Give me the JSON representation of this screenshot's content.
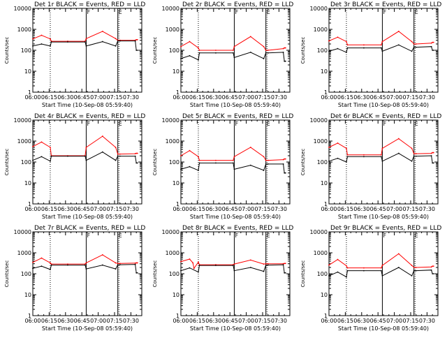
{
  "figure": {
    "ylabel": "Counts/sec",
    "xlabel": "Start Time (10-Sep-08 05:59:40)",
    "x_tick_labels": [
      "06:00",
      "06:15",
      "06:30",
      "06:45",
      "07:00",
      "07:15",
      "07:30"
    ],
    "y_tick_labels": [
      "1",
      "10",
      "100",
      "1000",
      "10000"
    ],
    "colors": {
      "events": "#000000",
      "lld": "#ff0000"
    },
    "marker_labels": [
      "F",
      "E"
    ]
  },
  "chart_data": [
    {
      "type": "line",
      "title": "Det 1r BLACK = Events, RED = LLD",
      "xlabel": "Start Time (10-Sep-08 05:59:40)",
      "ylabel": "Counts/sec",
      "x_unit": "minutes after 06:00",
      "ylim": [
        1,
        10000
      ],
      "y_scale": "log",
      "x_range": [
        "06:00",
        "07:40"
      ],
      "dotted_lines_at": [
        "06:16",
        "07:19"
      ],
      "solid_lines_at": [
        "06:49",
        "07:18"
      ],
      "series": [
        {
          "name": "Events",
          "color": "#000000",
          "x": [
            0,
            8,
            16,
            17,
            32,
            48,
            49,
            64,
            76,
            78,
            80,
            94,
            95,
            96
          ],
          "values": [
            160,
            200,
            160,
            250,
            250,
            250,
            160,
            260,
            160,
            280,
            280,
            280,
            100,
            100
          ]
        },
        {
          "name": "LLD",
          "color": "#ff0000",
          "x": [
            0,
            8,
            16,
            17,
            32,
            48,
            49,
            64,
            76,
            78,
            80,
            94,
            95,
            96
          ],
          "values": [
            350,
            520,
            350,
            270,
            270,
            270,
            360,
            800,
            360,
            300,
            300,
            300,
            320,
            320
          ]
        }
      ]
    },
    {
      "type": "line",
      "title": "Det 2r BLACK = Events, RED = LLD",
      "xlabel": "Start Time (10-Sep-08 05:59:40)",
      "ylabel": "Counts/sec",
      "x_unit": "minutes after 06:00",
      "ylim": [
        1,
        10000
      ],
      "y_scale": "log",
      "x_range": [
        "06:00",
        "07:40"
      ],
      "dotted_lines_at": [
        "06:16",
        "07:19"
      ],
      "solid_lines_at": [
        "06:49",
        "07:18"
      ],
      "series": [
        {
          "name": "Events",
          "color": "#000000",
          "x": [
            0,
            8,
            16,
            17,
            32,
            48,
            49,
            64,
            76,
            78,
            80,
            94,
            95,
            96
          ],
          "values": [
            40,
            55,
            35,
            75,
            75,
            75,
            45,
            80,
            40,
            75,
            75,
            80,
            30,
            30
          ]
        },
        {
          "name": "LLD",
          "color": "#ff0000",
          "x": [
            0,
            8,
            16,
            17,
            32,
            48,
            49,
            64,
            76,
            78,
            80,
            94,
            95,
            96
          ],
          "values": [
            150,
            260,
            130,
            100,
            100,
            100,
            150,
            450,
            150,
            100,
            100,
            120,
            130,
            130
          ]
        }
      ]
    },
    {
      "type": "line",
      "title": "Det 3r BLACK = Events, RED = LLD",
      "xlabel": "Start Time (10-Sep-08 05:59:40)",
      "ylabel": "Counts/sec",
      "x_unit": "minutes after 06:00",
      "ylim": [
        1,
        10000
      ],
      "y_scale": "log",
      "x_range": [
        "06:00",
        "07:40"
      ],
      "dotted_lines_at": [
        "06:16",
        "07:19"
      ],
      "solid_lines_at": [
        "06:49",
        "07:18"
      ],
      "series": [
        {
          "name": "Events",
          "color": "#000000",
          "x": [
            0,
            8,
            16,
            17,
            32,
            48,
            49,
            64,
            76,
            78,
            80,
            94,
            95,
            96
          ],
          "values": [
            90,
            120,
            80,
            130,
            130,
            130,
            90,
            180,
            90,
            140,
            140,
            150,
            100,
            100
          ]
        },
        {
          "name": "LLD",
          "color": "#ff0000",
          "x": [
            0,
            8,
            16,
            17,
            32,
            48,
            49,
            64,
            76,
            78,
            80,
            94,
            95,
            96
          ],
          "values": [
            280,
            420,
            260,
            180,
            180,
            180,
            260,
            800,
            260,
            200,
            200,
            220,
            240,
            240
          ]
        }
      ]
    },
    {
      "type": "line",
      "title": "Det 4r BLACK = Events, RED = LLD",
      "xlabel": "Start Time (10-Sep-08 05:59:40)",
      "ylabel": "Counts/sec",
      "x_unit": "minutes after 06:00",
      "ylim": [
        1,
        10000
      ],
      "y_scale": "log",
      "x_range": [
        "06:00",
        "07:40"
      ],
      "dotted_lines_at": [
        "06:16",
        "07:19"
      ],
      "solid_lines_at": [
        "06:49",
        "07:18"
      ],
      "series": [
        {
          "name": "Events",
          "color": "#000000",
          "x": [
            0,
            8,
            16,
            17,
            32,
            48,
            49,
            64,
            76,
            78,
            80,
            94,
            95,
            96
          ],
          "values": [
            120,
            180,
            110,
            190,
            190,
            190,
            120,
            300,
            120,
            190,
            190,
            190,
            90,
            90
          ]
        },
        {
          "name": "LLD",
          "color": "#ff0000",
          "x": [
            0,
            8,
            16,
            17,
            32,
            48,
            49,
            64,
            76,
            78,
            80,
            94,
            95,
            96
          ],
          "values": [
            550,
            900,
            500,
            200,
            200,
            200,
            500,
            1700,
            500,
            240,
            240,
            250,
            260,
            260
          ]
        }
      ]
    },
    {
      "type": "line",
      "title": "Det 5r BLACK = Events, RED = LLD",
      "xlabel": "Start Time (10-Sep-08 05:59:40)",
      "ylabel": "Counts/sec",
      "x_unit": "minutes after 06:00",
      "ylim": [
        1,
        10000
      ],
      "y_scale": "log",
      "x_range": [
        "06:00",
        "07:40"
      ],
      "dotted_lines_at": [
        "06:16",
        "07:19"
      ],
      "solid_lines_at": [
        "06:49",
        "07:18"
      ],
      "series": [
        {
          "name": "Events",
          "color": "#000000",
          "x": [
            0,
            8,
            16,
            17,
            32,
            48,
            49,
            64,
            76,
            78,
            80,
            94,
            95,
            96
          ],
          "values": [
            45,
            60,
            40,
            90,
            90,
            90,
            45,
            70,
            40,
            80,
            80,
            80,
            30,
            30
          ]
        },
        {
          "name": "LLD",
          "color": "#ff0000",
          "x": [
            0,
            8,
            16,
            17,
            32,
            48,
            49,
            64,
            76,
            78,
            80,
            94,
            95,
            96
          ],
          "values": [
            200,
            350,
            180,
            120,
            120,
            120,
            180,
            500,
            180,
            120,
            120,
            130,
            140,
            140
          ]
        }
      ]
    },
    {
      "type": "line",
      "title": "Det 6r BLACK = Events, RED = LLD",
      "xlabel": "Start Time (10-Sep-08 05:59:40)",
      "ylabel": "Counts/sec",
      "x_unit": "minutes after 06:00",
      "ylim": [
        1,
        10000
      ],
      "y_scale": "log",
      "x_range": [
        "06:00",
        "07:40"
      ],
      "dotted_lines_at": [
        "06:16",
        "07:19"
      ],
      "solid_lines_at": [
        "06:49",
        "07:18"
      ],
      "series": [
        {
          "name": "Events",
          "color": "#000000",
          "x": [
            0,
            8,
            16,
            17,
            32,
            48,
            49,
            64,
            76,
            78,
            80,
            94,
            95,
            96
          ],
          "values": [
            110,
            150,
            100,
            180,
            180,
            180,
            110,
            260,
            110,
            190,
            190,
            200,
            90,
            90
          ]
        },
        {
          "name": "LLD",
          "color": "#ff0000",
          "x": [
            0,
            8,
            16,
            17,
            32,
            48,
            49,
            64,
            76,
            78,
            80,
            94,
            95,
            96
          ],
          "values": [
            500,
            800,
            450,
            220,
            220,
            220,
            450,
            1300,
            450,
            250,
            250,
            260,
            280,
            280
          ]
        }
      ]
    },
    {
      "type": "line",
      "title": "Det 7r BLACK = Events, RED = LLD",
      "xlabel": "Start Time (10-Sep-08 05:59:40)",
      "ylabel": "Counts/sec",
      "x_unit": "minutes after 06:00",
      "ylim": [
        1,
        10000
      ],
      "y_scale": "log",
      "x_range": [
        "06:00",
        "07:40"
      ],
      "dotted_lines_at": [
        "06:16",
        "07:19"
      ],
      "solid_lines_at": [
        "06:49",
        "07:18"
      ],
      "series": [
        {
          "name": "Events",
          "color": "#000000",
          "x": [
            0,
            8,
            16,
            17,
            32,
            48,
            49,
            64,
            76,
            78,
            80,
            94,
            95,
            96
          ],
          "values": [
            180,
            230,
            160,
            260,
            260,
            260,
            170,
            260,
            170,
            270,
            270,
            280,
            110,
            110
          ]
        },
        {
          "name": "LLD",
          "color": "#ff0000",
          "x": [
            0,
            8,
            16,
            17,
            32,
            48,
            49,
            64,
            76,
            78,
            80,
            94,
            95,
            96
          ],
          "values": [
            350,
            560,
            330,
            290,
            290,
            290,
            330,
            800,
            330,
            310,
            310,
            320,
            330,
            330
          ]
        }
      ]
    },
    {
      "type": "line",
      "title": "Det 8r BLACK = Events, RED = LLD",
      "xlabel": "Start Time (10-Sep-08 05:59:40)",
      "ylabel": "Counts/sec",
      "x_unit": "minutes after 06:00",
      "ylim": [
        1,
        10000
      ],
      "y_scale": "log",
      "x_range": [
        "06:00",
        "07:40"
      ],
      "dotted_lines_at": [
        "06:16",
        "07:19"
      ],
      "solid_lines_at": [
        "06:49",
        "07:18"
      ],
      "series": [
        {
          "name": "Events",
          "color": "#000000",
          "x": [
            0,
            8,
            16,
            17,
            32,
            48,
            49,
            64,
            76,
            78,
            80,
            94,
            95,
            96
          ],
          "values": [
            140,
            190,
            120,
            250,
            250,
            250,
            140,
            200,
            130,
            260,
            260,
            270,
            110,
            110
          ]
        },
        {
          "name": "LLD",
          "color": "#ff0000",
          "x": [
            0,
            8,
            11,
            12,
            16,
            17,
            32,
            48,
            49,
            64,
            76,
            78,
            80,
            94,
            95,
            96
          ],
          "values": [
            380,
            500,
            330,
            180,
            360,
            270,
            270,
            270,
            290,
            450,
            290,
            300,
            300,
            300,
            310,
            310
          ]
        }
      ]
    },
    {
      "type": "line",
      "title": "Det 9r BLACK = Events, RED = LLD",
      "xlabel": "Start Time (10-Sep-08 05:59:40)",
      "ylabel": "Counts/sec",
      "x_unit": "minutes after 06:00",
      "ylim": [
        1,
        10000
      ],
      "y_scale": "log",
      "x_range": [
        "06:00",
        "07:40"
      ],
      "dotted_lines_at": [
        "06:16",
        "07:19"
      ],
      "solid_lines_at": [
        "06:49",
        "07:18"
      ],
      "series": [
        {
          "name": "Events",
          "color": "#000000",
          "x": [
            0,
            8,
            16,
            17,
            32,
            48,
            49,
            64,
            76,
            78,
            80,
            94,
            95,
            96
          ],
          "values": [
            80,
            120,
            70,
            140,
            140,
            140,
            80,
            200,
            80,
            140,
            140,
            150,
            100,
            100
          ]
        },
        {
          "name": "LLD",
          "color": "#ff0000",
          "x": [
            0,
            8,
            16,
            17,
            32,
            48,
            49,
            64,
            76,
            78,
            80,
            94,
            95,
            96
          ],
          "values": [
            260,
            480,
            240,
            190,
            190,
            190,
            250,
            900,
            250,
            200,
            200,
            210,
            230,
            230
          ]
        }
      ]
    }
  ]
}
